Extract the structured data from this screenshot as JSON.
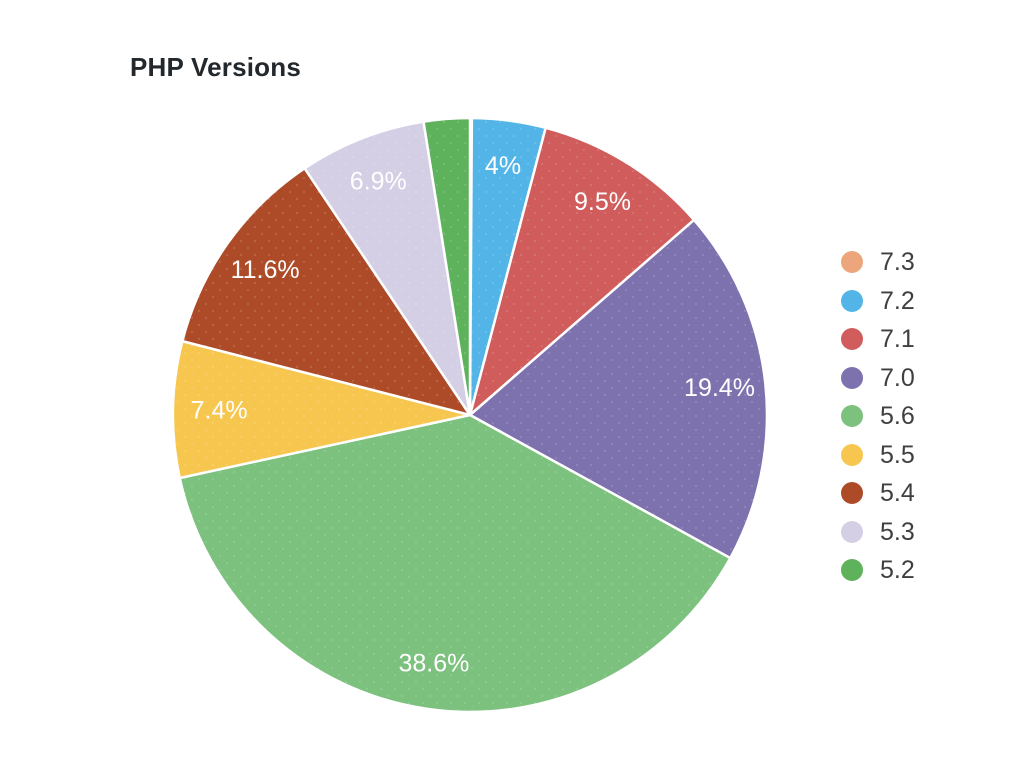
{
  "chart_data": {
    "type": "pie",
    "title": "PHP Versions",
    "legend_position": "right",
    "start_angle": "12-oclock",
    "direction": "clockwise",
    "slice_border_color": "#ffffff",
    "slice_label_color": "#ffffff",
    "slices": [
      {
        "name": "7.3",
        "value": 0.1,
        "display_label": "",
        "color": "#eda67c"
      },
      {
        "name": "7.2",
        "value": 4.0,
        "display_label": "4%",
        "color": "#53b5e7"
      },
      {
        "name": "7.1",
        "value": 9.5,
        "display_label": "9.5%",
        "color": "#d05c5c"
      },
      {
        "name": "7.0",
        "value": 19.4,
        "display_label": "19.4%",
        "color": "#7d72ae"
      },
      {
        "name": "5.6",
        "value": 38.6,
        "display_label": "38.6%",
        "color": "#7cc17e"
      },
      {
        "name": "5.5",
        "value": 7.4,
        "display_label": "7.4%",
        "color": "#f6c64f"
      },
      {
        "name": "5.4",
        "value": 11.6,
        "display_label": "11.6%",
        "color": "#ad4b28"
      },
      {
        "name": "5.3",
        "value": 6.9,
        "display_label": "6.9%",
        "color": "#d4cfe5"
      },
      {
        "name": "5.2",
        "value": 2.5,
        "display_label": "",
        "color": "#5eb25c"
      }
    ]
  }
}
